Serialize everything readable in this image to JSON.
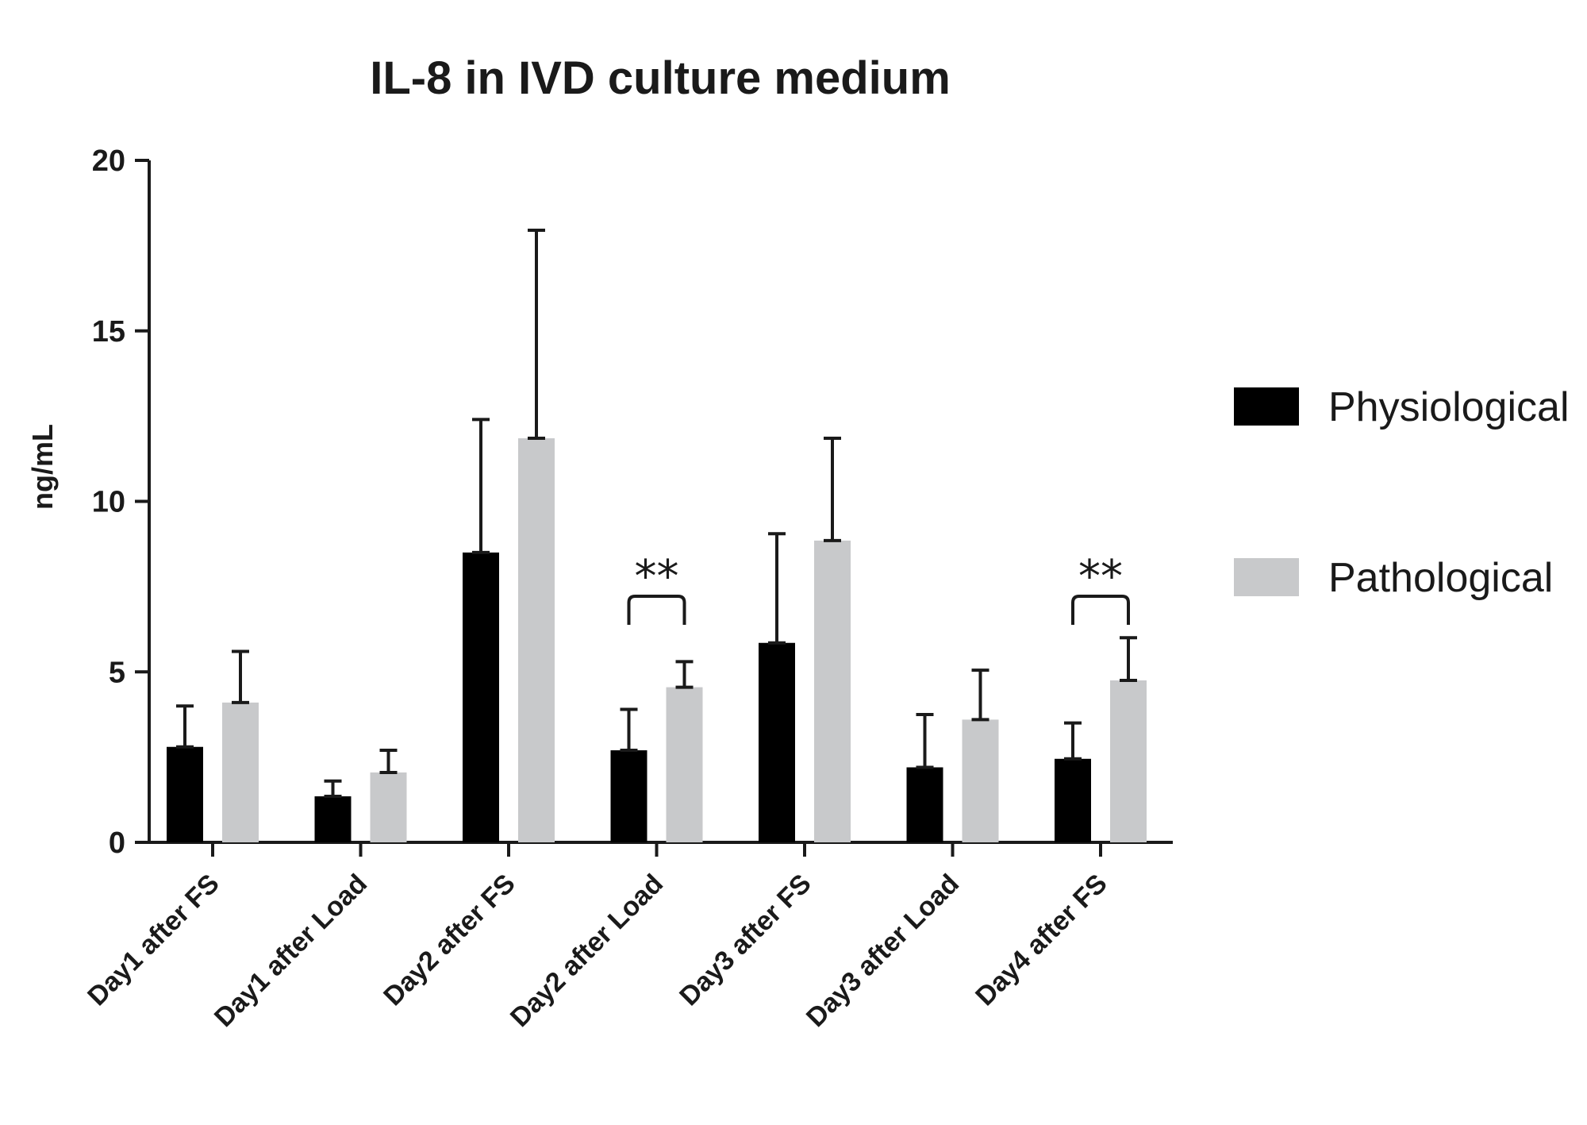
{
  "chart_data": {
    "type": "bar",
    "title": "IL-8 in IVD culture medium",
    "xlabel": "",
    "ylabel": "ng/mL",
    "ylim": [
      0,
      20
    ],
    "yticks": [
      "0",
      "5",
      "10",
      "15",
      "20"
    ],
    "grid": false,
    "legend_position": "right",
    "categories": [
      "Day1 after FS",
      "Day1 after Load",
      "Day2 after FS",
      "Day2 after Load",
      "Day3 after FS",
      "Day3 after Load",
      "Day4 after FS"
    ],
    "series": [
      {
        "name": "Physiological",
        "color": "#000000",
        "values": [
          2.8,
          1.35,
          8.5,
          2.7,
          5.85,
          2.2,
          2.45
        ],
        "error": [
          1.2,
          0.45,
          3.9,
          1.2,
          3.2,
          1.55,
          1.05
        ]
      },
      {
        "name": "Pathological",
        "color": "#c8c9cb",
        "values": [
          4.1,
          2.05,
          11.85,
          4.55,
          8.85,
          3.6,
          4.75
        ],
        "error": [
          1.5,
          0.65,
          6.1,
          0.75,
          3.0,
          1.45,
          1.25
        ]
      }
    ],
    "annotations": [
      {
        "category_index": 3,
        "text": "**"
      },
      {
        "category_index": 6,
        "text": "**"
      }
    ]
  }
}
